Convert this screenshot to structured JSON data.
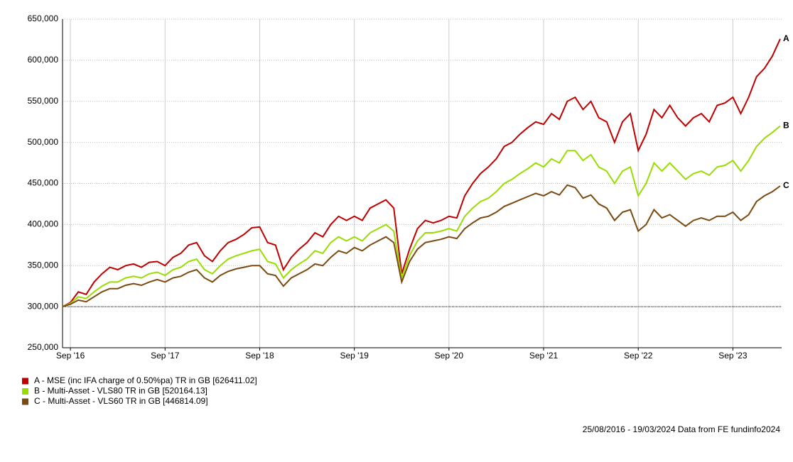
{
  "chart_data": {
    "type": "line",
    "x": [
      "2016-08",
      "2016-09",
      "2016-10",
      "2016-11",
      "2016-12",
      "2017-01",
      "2017-02",
      "2017-03",
      "2017-04",
      "2017-05",
      "2017-06",
      "2017-07",
      "2017-08",
      "2017-09",
      "2017-10",
      "2017-11",
      "2017-12",
      "2018-01",
      "2018-02",
      "2018-03",
      "2018-04",
      "2018-05",
      "2018-06",
      "2018-07",
      "2018-08",
      "2018-09",
      "2018-10",
      "2018-11",
      "2018-12",
      "2019-01",
      "2019-02",
      "2019-03",
      "2019-04",
      "2019-05",
      "2019-06",
      "2019-07",
      "2019-08",
      "2019-09",
      "2019-10",
      "2019-11",
      "2019-12",
      "2020-01",
      "2020-02",
      "2020-03",
      "2020-04",
      "2020-05",
      "2020-06",
      "2020-07",
      "2020-08",
      "2020-09",
      "2020-10",
      "2020-11",
      "2020-12",
      "2021-01",
      "2021-02",
      "2021-03",
      "2021-04",
      "2021-05",
      "2021-06",
      "2021-07",
      "2021-08",
      "2021-09",
      "2021-10",
      "2021-11",
      "2021-12",
      "2022-01",
      "2022-02",
      "2022-03",
      "2022-04",
      "2022-05",
      "2022-06",
      "2022-07",
      "2022-08",
      "2022-09",
      "2022-10",
      "2022-11",
      "2022-12",
      "2023-01",
      "2023-02",
      "2023-03",
      "2023-04",
      "2023-05",
      "2023-06",
      "2023-07",
      "2023-08",
      "2023-09",
      "2023-10",
      "2023-11",
      "2023-12",
      "2024-01",
      "2024-02",
      "2024-03"
    ],
    "series": [
      {
        "name": "A - MSE (inc IFA charge of 0.50%pa) TR in GB [626411.02]",
        "label": "A",
        "color": "#c00000",
        "values": [
          300000,
          305000,
          318000,
          315000,
          330000,
          340000,
          348000,
          345000,
          350000,
          352000,
          348000,
          354000,
          355000,
          350000,
          360000,
          365000,
          375000,
          378000,
          362000,
          355000,
          368000,
          378000,
          382000,
          388000,
          396000,
          397000,
          378000,
          375000,
          345000,
          360000,
          370000,
          378000,
          390000,
          385000,
          400000,
          410000,
          405000,
          410000,
          405000,
          420000,
          425000,
          430000,
          420000,
          340000,
          370000,
          395000,
          405000,
          402000,
          405000,
          410000,
          408000,
          435000,
          450000,
          462000,
          470000,
          480000,
          495000,
          500000,
          510000,
          518000,
          525000,
          522000,
          535000,
          528000,
          550000,
          555000,
          540000,
          550000,
          530000,
          525000,
          500000,
          525000,
          535000,
          490000,
          510000,
          540000,
          530000,
          545000,
          530000,
          520000,
          530000,
          535000,
          525000,
          545000,
          548000,
          555000,
          535000,
          555000,
          580000,
          590000,
          605000,
          626000
        ]
      },
      {
        "name": "B - Multi-Asset - VLS80 TR in GB [520164.13]",
        "label": "B",
        "color": "#99dd00",
        "values": [
          300000,
          304000,
          312000,
          310000,
          318000,
          325000,
          330000,
          330000,
          335000,
          337000,
          335000,
          340000,
          342000,
          338000,
          345000,
          348000,
          355000,
          358000,
          345000,
          340000,
          350000,
          358000,
          362000,
          365000,
          368000,
          370000,
          355000,
          352000,
          335000,
          345000,
          352000,
          358000,
          368000,
          365000,
          378000,
          385000,
          380000,
          385000,
          380000,
          390000,
          395000,
          400000,
          392000,
          335000,
          362000,
          380000,
          390000,
          390000,
          392000,
          395000,
          392000,
          410000,
          420000,
          428000,
          432000,
          440000,
          450000,
          455000,
          462000,
          468000,
          475000,
          470000,
          480000,
          475000,
          490000,
          490000,
          478000,
          485000,
          470000,
          465000,
          450000,
          465000,
          470000,
          435000,
          450000,
          475000,
          465000,
          475000,
          465000,
          455000,
          462000,
          465000,
          460000,
          470000,
          472000,
          478000,
          465000,
          478000,
          495000,
          505000,
          512000,
          520000
        ]
      },
      {
        "name": "C - Multi-Asset - VLS60 TR in GB [446814.09]",
        "label": "C",
        "color": "#7a4a10",
        "values": [
          300000,
          303000,
          308000,
          306000,
          312000,
          318000,
          322000,
          322000,
          326000,
          328000,
          326000,
          330000,
          333000,
          330000,
          335000,
          337000,
          342000,
          345000,
          335000,
          330000,
          338000,
          343000,
          346000,
          348000,
          350000,
          350000,
          340000,
          338000,
          325000,
          335000,
          340000,
          345000,
          352000,
          350000,
          360000,
          368000,
          365000,
          372000,
          368000,
          375000,
          380000,
          385000,
          378000,
          330000,
          355000,
          370000,
          378000,
          380000,
          382000,
          385000,
          383000,
          395000,
          402000,
          408000,
          410000,
          415000,
          422000,
          426000,
          430000,
          434000,
          438000,
          435000,
          440000,
          436000,
          448000,
          445000,
          432000,
          436000,
          425000,
          420000,
          405000,
          415000,
          418000,
          392000,
          400000,
          418000,
          408000,
          412000,
          405000,
          398000,
          405000,
          408000,
          405000,
          410000,
          410000,
          415000,
          405000,
          412000,
          428000,
          435000,
          440000,
          447000
        ]
      }
    ],
    "ylim": [
      250000,
      650000
    ],
    "yticks": [
      {
        "value": 250000,
        "label": "250,000"
      },
      {
        "value": 300000,
        "label": "300,000"
      },
      {
        "value": 350000,
        "label": "350,000"
      },
      {
        "value": 400000,
        "label": "400,000"
      },
      {
        "value": 450000,
        "label": "450,000"
      },
      {
        "value": 500000,
        "label": "500,000"
      },
      {
        "value": 550000,
        "label": "550,000"
      },
      {
        "value": 600000,
        "label": "600,000"
      },
      {
        "value": 650000,
        "label": "650,000"
      }
    ],
    "xticks": [
      {
        "value": "2016-09",
        "label": "Sep '16"
      },
      {
        "value": "2017-09",
        "label": "Sep '17"
      },
      {
        "value": "2018-09",
        "label": "Sep '18"
      },
      {
        "value": "2019-09",
        "label": "Sep '19"
      },
      {
        "value": "2020-09",
        "label": "Sep '20"
      },
      {
        "value": "2021-09",
        "label": "Sep '21"
      },
      {
        "value": "2022-09",
        "label": "Sep '22"
      },
      {
        "value": "2023-09",
        "label": "Sep '23"
      }
    ],
    "baseline": 300000,
    "grid": true,
    "footer": "25/08/2016 - 19/03/2024 Data from FE fundinfo2024"
  }
}
